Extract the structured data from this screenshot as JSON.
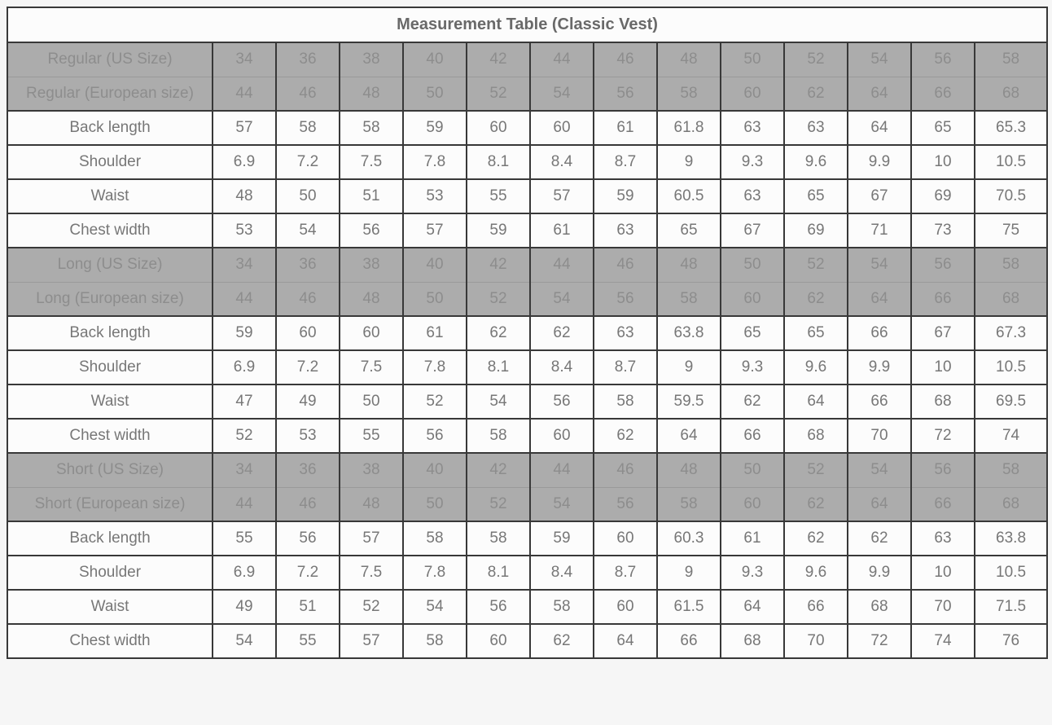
{
  "title": "Measurement Table (Classic Vest)",
  "colors": {
    "page_bg": "#f6f6f6",
    "cell_bg": "#fcfcfc",
    "cell_text": "#777777",
    "title_text": "#696969",
    "gray_row_bg": "#acacac",
    "gray_row_text": "#8d8d8d",
    "border_dark": "#383838",
    "border_gray": "#9a9a9a"
  },
  "table": {
    "num_size_columns": 13,
    "sections": [
      {
        "name": "Regular",
        "size_rows": [
          {
            "label": "Regular (US Size)",
            "values": [
              "34",
              "36",
              "38",
              "40",
              "42",
              "44",
              "46",
              "48",
              "50",
              "52",
              "54",
              "56",
              "58"
            ]
          },
          {
            "label": "Regular (European size)",
            "values": [
              "44",
              "46",
              "48",
              "50",
              "52",
              "54",
              "56",
              "58",
              "60",
              "62",
              "64",
              "66",
              "68"
            ]
          }
        ],
        "measure_rows": [
          {
            "label": "Back length",
            "values": [
              "57",
              "58",
              "58",
              "59",
              "60",
              "60",
              "61",
              "61.8",
              "63",
              "63",
              "64",
              "65",
              "65.3"
            ]
          },
          {
            "label": "Shoulder",
            "values": [
              "6.9",
              "7.2",
              "7.5",
              "7.8",
              "8.1",
              "8.4",
              "8.7",
              "9",
              "9.3",
              "9.6",
              "9.9",
              "10",
              "10.5"
            ]
          },
          {
            "label": "Waist",
            "values": [
              "48",
              "50",
              "51",
              "53",
              "55",
              "57",
              "59",
              "60.5",
              "63",
              "65",
              "67",
              "69",
              "70.5"
            ]
          },
          {
            "label": "Chest width",
            "values": [
              "53",
              "54",
              "56",
              "57",
              "59",
              "61",
              "63",
              "65",
              "67",
              "69",
              "71",
              "73",
              "75"
            ]
          }
        ]
      },
      {
        "name": "Long",
        "size_rows": [
          {
            "label": "Long (US Size)",
            "values": [
              "34",
              "36",
              "38",
              "40",
              "42",
              "44",
              "46",
              "48",
              "50",
              "52",
              "54",
              "56",
              "58"
            ]
          },
          {
            "label": "Long (European size)",
            "values": [
              "44",
              "46",
              "48",
              "50",
              "52",
              "54",
              "56",
              "58",
              "60",
              "62",
              "64",
              "66",
              "68"
            ]
          }
        ],
        "measure_rows": [
          {
            "label": "Back length",
            "values": [
              "59",
              "60",
              "60",
              "61",
              "62",
              "62",
              "63",
              "63.8",
              "65",
              "65",
              "66",
              "67",
              "67.3"
            ]
          },
          {
            "label": "Shoulder",
            "values": [
              "6.9",
              "7.2",
              "7.5",
              "7.8",
              "8.1",
              "8.4",
              "8.7",
              "9",
              "9.3",
              "9.6",
              "9.9",
              "10",
              "10.5"
            ]
          },
          {
            "label": "Waist",
            "values": [
              "47",
              "49",
              "50",
              "52",
              "54",
              "56",
              "58",
              "59.5",
              "62",
              "64",
              "66",
              "68",
              "69.5"
            ]
          },
          {
            "label": "Chest width",
            "values": [
              "52",
              "53",
              "55",
              "56",
              "58",
              "60",
              "62",
              "64",
              "66",
              "68",
              "70",
              "72",
              "74"
            ]
          }
        ]
      },
      {
        "name": "Short",
        "size_rows": [
          {
            "label": "Short (US Size)",
            "values": [
              "34",
              "36",
              "38",
              "40",
              "42",
              "44",
              "46",
              "48",
              "50",
              "52",
              "54",
              "56",
              "58"
            ]
          },
          {
            "label": "Short (European size)",
            "values": [
              "44",
              "46",
              "48",
              "50",
              "52",
              "54",
              "56",
              "58",
              "60",
              "62",
              "64",
              "66",
              "68"
            ]
          }
        ],
        "measure_rows": [
          {
            "label": "Back length",
            "values": [
              "55",
              "56",
              "57",
              "58",
              "58",
              "59",
              "60",
              "60.3",
              "61",
              "62",
              "62",
              "63",
              "63.8"
            ]
          },
          {
            "label": "Shoulder",
            "values": [
              "6.9",
              "7.2",
              "7.5",
              "7.8",
              "8.1",
              "8.4",
              "8.7",
              "9",
              "9.3",
              "9.6",
              "9.9",
              "10",
              "10.5"
            ]
          },
          {
            "label": "Waist",
            "values": [
              "49",
              "51",
              "52",
              "54",
              "56",
              "58",
              "60",
              "61.5",
              "64",
              "66",
              "68",
              "70",
              "71.5"
            ]
          },
          {
            "label": "Chest width",
            "values": [
              "54",
              "55",
              "57",
              "58",
              "60",
              "62",
              "64",
              "66",
              "68",
              "70",
              "72",
              "74",
              "76"
            ]
          }
        ]
      }
    ]
  }
}
